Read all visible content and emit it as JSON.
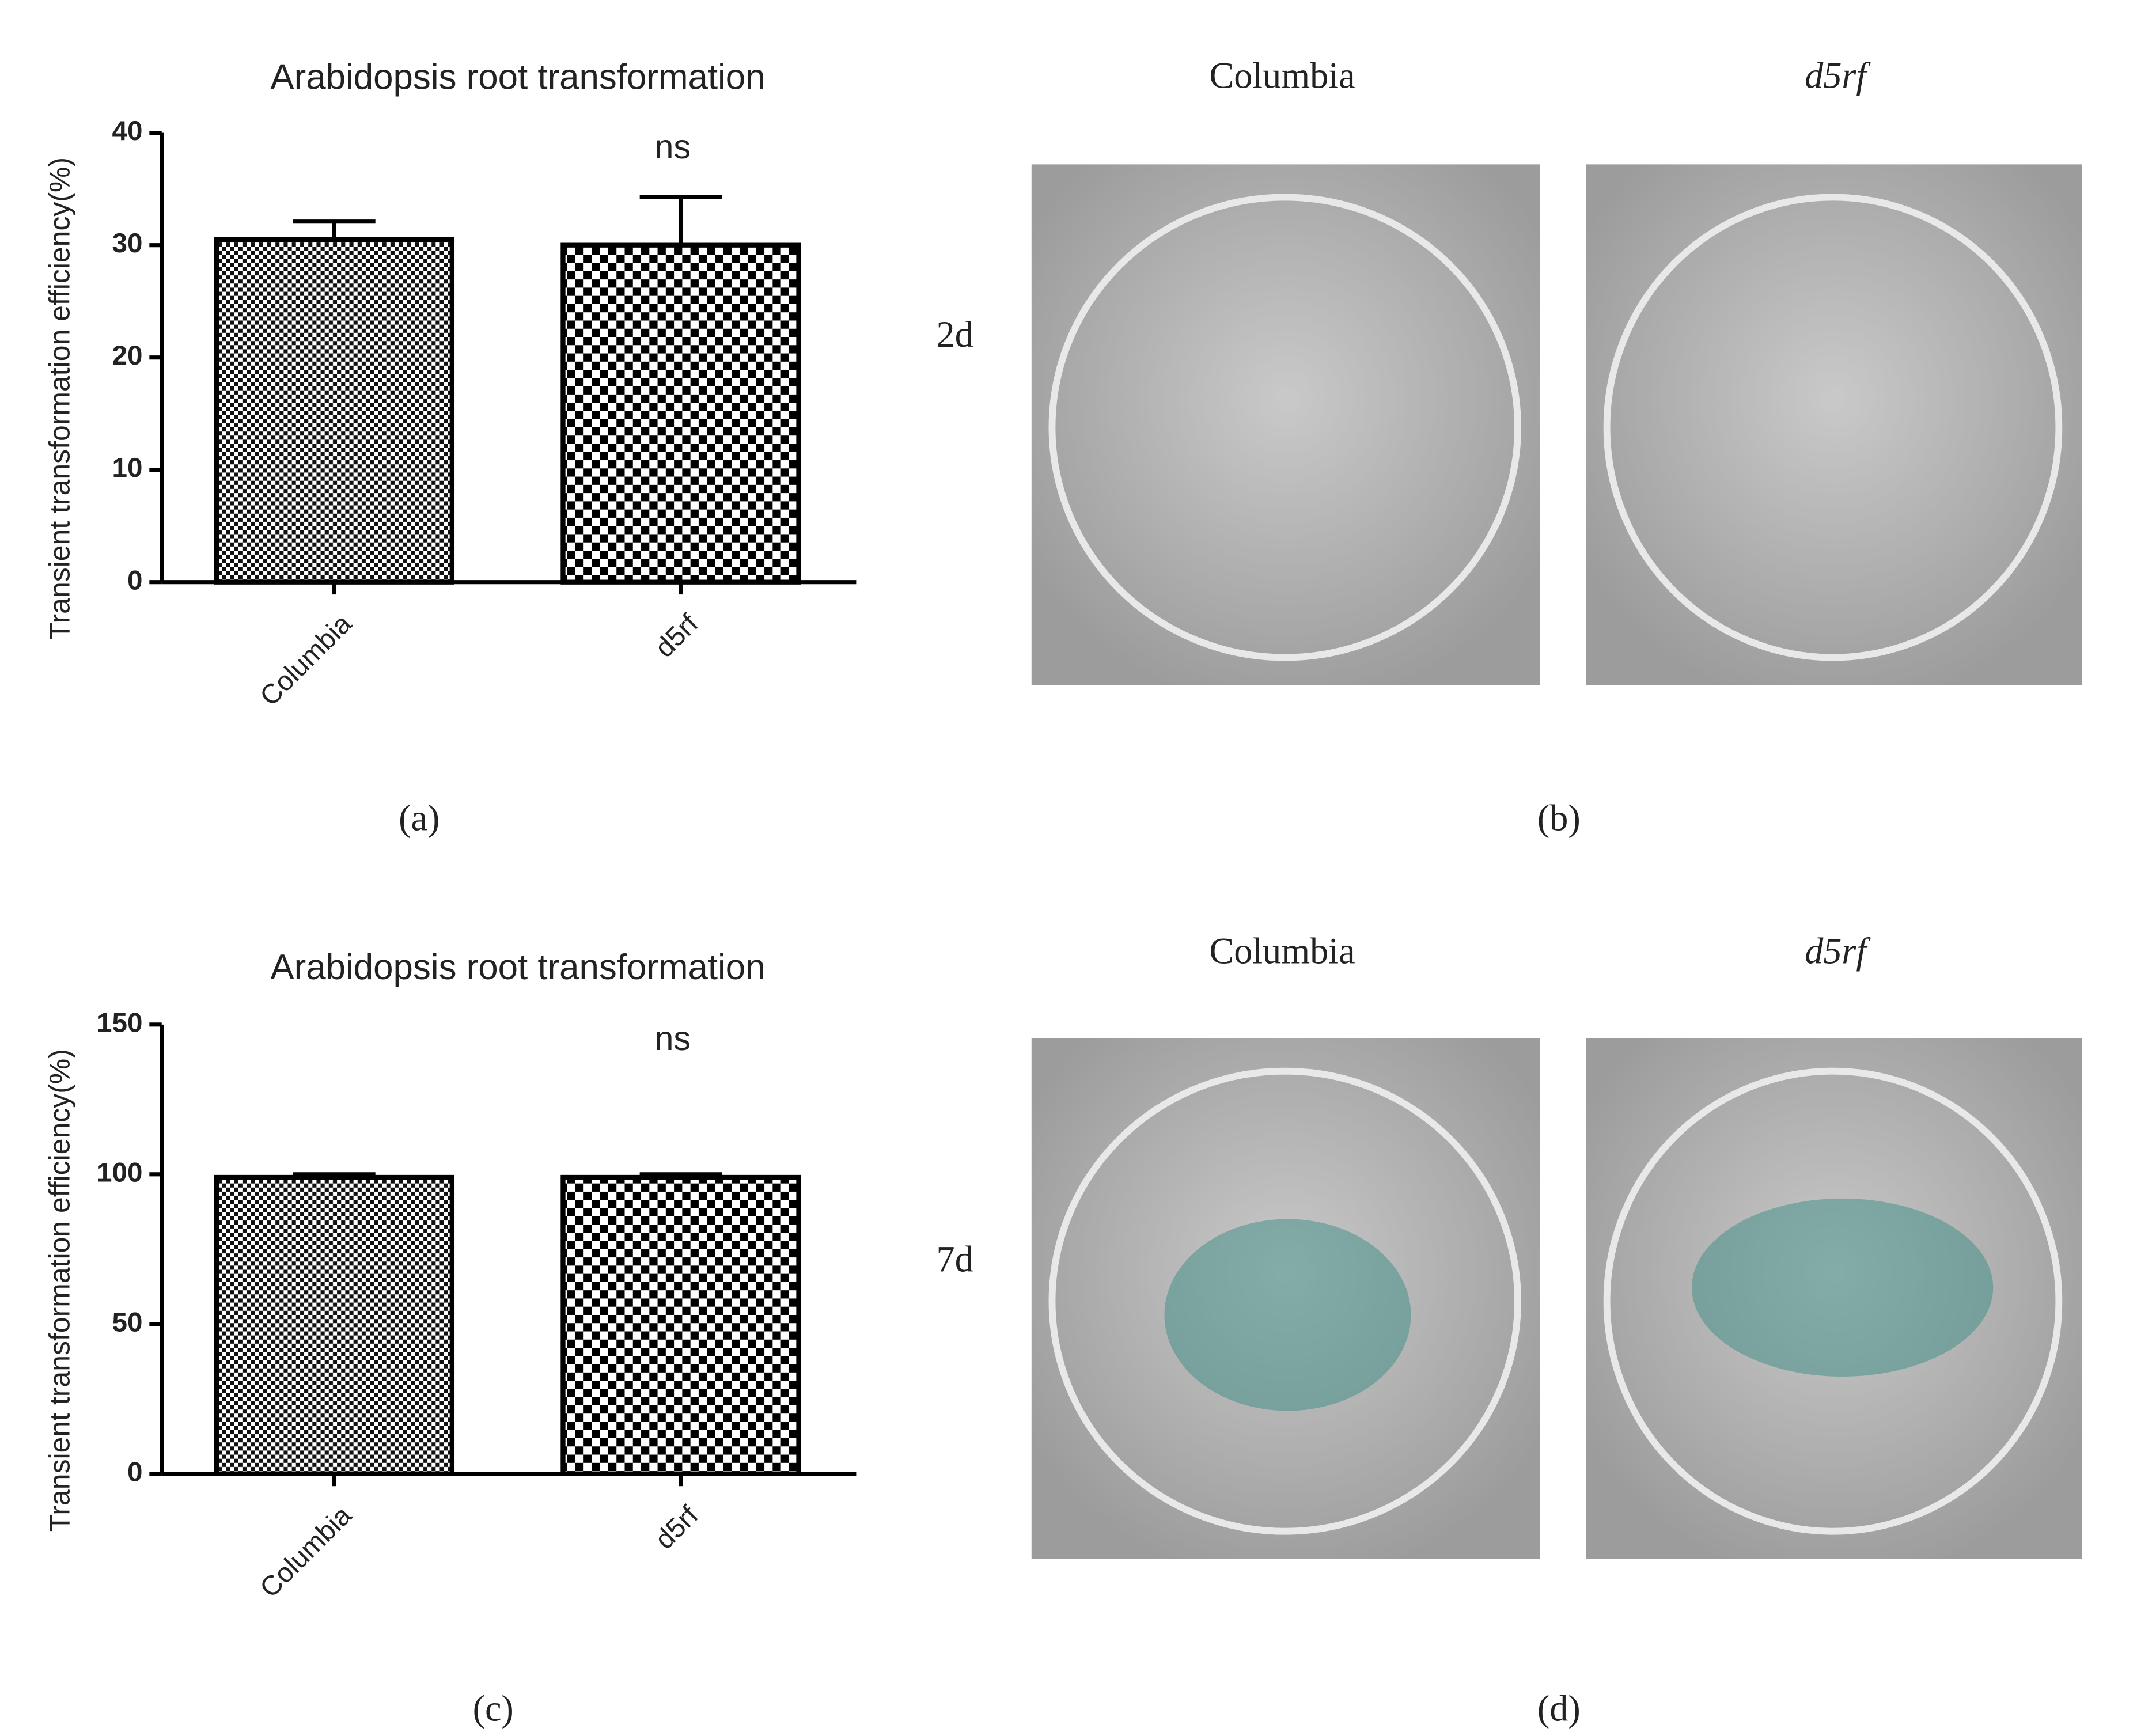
{
  "chart_data": [
    {
      "type": "bar",
      "title": "Arabidopsis root transformation",
      "y_label": "Transient transformation efficiency(%)",
      "categories": [
        "Columbia",
        "d5rf"
      ],
      "values": [
        30.5,
        30
      ],
      "errors": [
        1.6,
        4.3
      ],
      "annotation": "ns",
      "ylim": [
        0,
        40
      ],
      "yticks": [
        0,
        10,
        20,
        30,
        40
      ]
    },
    {
      "type": "bar",
      "title": "Arabidopsis root transformation",
      "y_label": "Transient transformation efficiency(%)",
      "categories": [
        "Columbia",
        "d5rf"
      ],
      "values": [
        99,
        99
      ],
      "errors": [
        1,
        1
      ],
      "annotation": "ns",
      "ylim": [
        0,
        150
      ],
      "yticks": [
        0,
        50,
        100,
        150
      ]
    }
  ],
  "panels": {
    "labels": [
      "(a)",
      "(b)",
      "(c)",
      "(d)"
    ],
    "photo_columns": [
      [
        "Columbia",
        "d5rf"
      ],
      [
        "Columbia",
        "d5rf"
      ]
    ],
    "photo_rows": [
      "2d",
      "7d"
    ]
  }
}
